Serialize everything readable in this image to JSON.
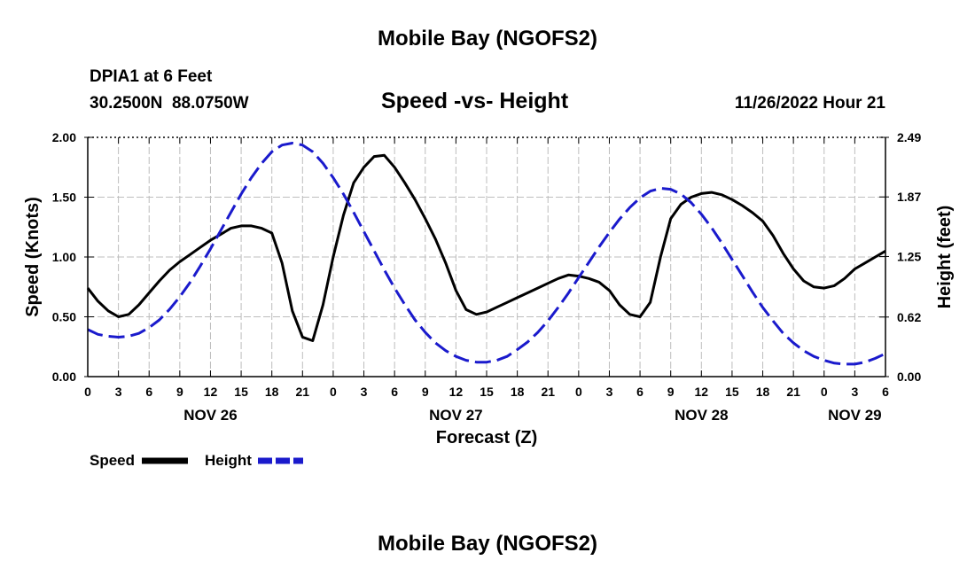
{
  "header": {
    "title": "Mobile Bay (NGOFS2)",
    "station": "DPIA1 at 6 Feet",
    "coords": "30.2500N  88.0750W",
    "plot_title": "Speed -vs- Height",
    "datetime": "11/26/2022 Hour 21"
  },
  "footer": {
    "title": "Mobile Bay (NGOFS2)"
  },
  "legend": {
    "speed_label": "Speed",
    "height_label": "Height"
  },
  "colors": {
    "speed": "#000000",
    "height": "#1a1acc",
    "grid": "#bdbdbd"
  },
  "chart_data": {
    "type": "line",
    "title": "Speed -vs- Height",
    "xlabel": "Forecast (Z)",
    "ylabel": "Speed (Knots)",
    "y2label": "Height (feet)",
    "xlim": [
      0,
      78
    ],
    "ylim": [
      0,
      2.0
    ],
    "y2lim": [
      0,
      2.49
    ],
    "x_ticks": [
      0,
      3,
      6,
      9,
      12,
      15,
      18,
      21,
      24,
      27,
      30,
      33,
      36,
      39,
      42,
      45,
      48,
      51,
      54,
      57,
      60,
      63,
      66,
      69,
      72,
      75,
      78
    ],
    "x_tick_labels": [
      "0",
      "3",
      "6",
      "9",
      "12",
      "15",
      "18",
      "21",
      "0",
      "3",
      "6",
      "9",
      "12",
      "15",
      "18",
      "21",
      "0",
      "3",
      "6",
      "9",
      "12",
      "15",
      "18",
      "21",
      "0",
      "3",
      "6"
    ],
    "day_labels": [
      {
        "x": 12,
        "label": "NOV 26"
      },
      {
        "x": 36,
        "label": "NOV 27"
      },
      {
        "x": 60,
        "label": "NOV 28"
      },
      {
        "x": 75,
        "label": "NOV 29"
      }
    ],
    "y_ticks": [
      0,
      0.5,
      1.0,
      1.5,
      2.0
    ],
    "y_tick_labels": [
      "0.00",
      "0.50",
      "1.00",
      "1.50",
      "2.00"
    ],
    "y2_ticks": [
      0,
      0.62,
      1.25,
      1.87,
      2.49
    ],
    "y2_tick_labels": [
      "0.00",
      "0.62",
      "1.25",
      "1.87",
      "2.49"
    ],
    "grid": true,
    "legend_position": "bottom-left",
    "series": [
      {
        "name": "Speed",
        "axis": "left",
        "style": "solid",
        "x": [
          0,
          1,
          2,
          3,
          4,
          5,
          6,
          7,
          8,
          9,
          10,
          11,
          12,
          13,
          14,
          15,
          16,
          17,
          18,
          19,
          20,
          21,
          22,
          23,
          24,
          25,
          26,
          27,
          28,
          29,
          30,
          31,
          32,
          33,
          34,
          35,
          36,
          37,
          38,
          39,
          40,
          41,
          42,
          43,
          44,
          45,
          46,
          47,
          48,
          49,
          50,
          51,
          52,
          53,
          54,
          55,
          56,
          57,
          58,
          59,
          60,
          61,
          62,
          63,
          64,
          65,
          66,
          67,
          68,
          69,
          70,
          71,
          72,
          73,
          74,
          75,
          76,
          77,
          78
        ],
        "values": [
          0.74,
          0.63,
          0.55,
          0.5,
          0.52,
          0.6,
          0.7,
          0.8,
          0.89,
          0.96,
          1.02,
          1.08,
          1.14,
          1.19,
          1.24,
          1.26,
          1.26,
          1.24,
          1.2,
          0.95,
          0.55,
          0.33,
          0.3,
          0.6,
          1.0,
          1.35,
          1.62,
          1.75,
          1.84,
          1.85,
          1.75,
          1.62,
          1.48,
          1.32,
          1.15,
          0.95,
          0.72,
          0.56,
          0.52,
          0.54,
          0.58,
          0.62,
          0.66,
          0.7,
          0.74,
          0.78,
          0.82,
          0.85,
          0.84,
          0.82,
          0.79,
          0.72,
          0.6,
          0.52,
          0.5,
          0.62,
          1.0,
          1.32,
          1.44,
          1.5,
          1.53,
          1.54,
          1.52,
          1.48,
          1.43,
          1.37,
          1.3,
          1.18,
          1.03,
          0.9,
          0.8,
          0.75,
          0.74,
          0.76,
          0.82,
          0.9,
          0.95,
          1.0,
          1.05
        ]
      },
      {
        "name": "Height",
        "axis": "right",
        "style": "dashed",
        "x": [
          0,
          1,
          2,
          3,
          4,
          5,
          6,
          7,
          8,
          9,
          10,
          11,
          12,
          13,
          14,
          15,
          16,
          17,
          18,
          19,
          20,
          21,
          22,
          23,
          24,
          25,
          26,
          27,
          28,
          29,
          30,
          31,
          32,
          33,
          34,
          35,
          36,
          37,
          38,
          39,
          40,
          41,
          42,
          43,
          44,
          45,
          46,
          47,
          48,
          49,
          50,
          51,
          52,
          53,
          54,
          55,
          56,
          57,
          58,
          59,
          60,
          61,
          62,
          63,
          64,
          65,
          66,
          67,
          68,
          69,
          70,
          71,
          72,
          73,
          74,
          75,
          76,
          77,
          78
        ],
        "values": [
          0.49,
          0.44,
          0.42,
          0.41,
          0.42,
          0.45,
          0.51,
          0.59,
          0.7,
          0.83,
          0.98,
          1.15,
          1.33,
          1.52,
          1.71,
          1.9,
          2.07,
          2.22,
          2.34,
          2.41,
          2.43,
          2.41,
          2.34,
          2.22,
          2.07,
          1.9,
          1.71,
          1.51,
          1.31,
          1.11,
          0.92,
          0.75,
          0.59,
          0.46,
          0.35,
          0.27,
          0.21,
          0.17,
          0.15,
          0.15,
          0.17,
          0.21,
          0.28,
          0.36,
          0.46,
          0.58,
          0.72,
          0.87,
          1.03,
          1.19,
          1.35,
          1.5,
          1.64,
          1.76,
          1.86,
          1.93,
          1.96,
          1.95,
          1.9,
          1.81,
          1.69,
          1.55,
          1.39,
          1.22,
          1.05,
          0.88,
          0.72,
          0.58,
          0.45,
          0.35,
          0.27,
          0.21,
          0.17,
          0.14,
          0.13,
          0.13,
          0.15,
          0.19,
          0.24
        ]
      }
    ]
  }
}
